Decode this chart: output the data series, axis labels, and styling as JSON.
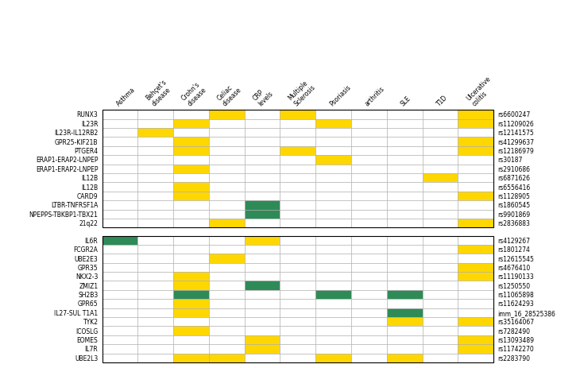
{
  "columns": [
    "Asthma",
    "Behçet's\ndisease",
    "Crohn's\ndisease",
    "Celiac\ndisease",
    "CRP\nlevels",
    "Multiple\nSclerosis",
    "Psoriasis",
    "arthritis",
    "SLE",
    "T1D",
    "Ulcerative\ncolitis"
  ],
  "group1_rows": [
    "RUNX3",
    "IL23R",
    "IL23R-IL12RB2",
    "GPR25-KIF21B",
    "PTGER4",
    "ERAP1-ERAP2-LNPEP",
    "ERAP1-ERAP2-LNPEP",
    "IL12B",
    "IL12B",
    "CARD9",
    "LTBR-TNFRSF1A",
    "NPEPPS-TBKBP1-TBX21",
    "21q22"
  ],
  "group1_snps": [
    "rs6600247",
    "rs11209026",
    "rs12141575",
    "rs41299637",
    "rs12186979",
    "rs30187",
    "rs2910686",
    "rs6871626",
    "rs6556416",
    "rs1128905",
    "rs1860545",
    "rs9901869",
    "rs2836883"
  ],
  "group2_rows": [
    "IL6R",
    "FCGR2A",
    "UBE2E3",
    "GPR35",
    "NKX2-3",
    "ZMIZ1",
    "SH2B3",
    "GPR65",
    "IL27-SUL T1A1",
    "TYK2",
    "ICOSLG",
    "EOMES",
    "IL7R",
    "UBE2L3"
  ],
  "group2_snps": [
    "rs4129267",
    "rs1801274",
    "rs12615545",
    "rs4676410",
    "rs11190133",
    "rs1250550",
    "rs11065898",
    "rs11624293",
    "imm_16_28525386",
    "rs35164067",
    "rs7282490",
    "rs13093489",
    "rs11742270",
    "rs2283790"
  ],
  "yellow": "#FFD700",
  "green": "#2E8B57",
  "grid_color": "#AAAAAA",
  "group1_data": [
    [
      0,
      0,
      0,
      1,
      0,
      1,
      0,
      0,
      0,
      0,
      1
    ],
    [
      0,
      0,
      1,
      0,
      0,
      0,
      1,
      0,
      0,
      0,
      1
    ],
    [
      0,
      1,
      0,
      0,
      0,
      0,
      0,
      0,
      0,
      0,
      0
    ],
    [
      0,
      0,
      1,
      0,
      0,
      0,
      0,
      0,
      0,
      0,
      1
    ],
    [
      0,
      0,
      1,
      0,
      0,
      1,
      0,
      0,
      0,
      0,
      1
    ],
    [
      0,
      0,
      0,
      0,
      0,
      0,
      1,
      0,
      0,
      0,
      0
    ],
    [
      0,
      0,
      1,
      0,
      0,
      0,
      0,
      0,
      0,
      0,
      0
    ],
    [
      0,
      0,
      0,
      0,
      0,
      0,
      0,
      0,
      0,
      1,
      0
    ],
    [
      0,
      0,
      1,
      0,
      0,
      0,
      0,
      0,
      0,
      0,
      0
    ],
    [
      0,
      0,
      1,
      0,
      0,
      0,
      0,
      0,
      0,
      0,
      1
    ],
    [
      0,
      0,
      0,
      0,
      2,
      0,
      0,
      0,
      0,
      0,
      0
    ],
    [
      0,
      0,
      0,
      0,
      2,
      0,
      0,
      0,
      0,
      0,
      0
    ],
    [
      0,
      0,
      0,
      1,
      0,
      0,
      0,
      0,
      0,
      0,
      1
    ]
  ],
  "group2_data": [
    [
      2,
      0,
      0,
      0,
      1,
      0,
      0,
      0,
      0,
      0,
      0
    ],
    [
      0,
      0,
      0,
      0,
      0,
      0,
      0,
      0,
      0,
      0,
      1
    ],
    [
      0,
      0,
      0,
      1,
      0,
      0,
      0,
      0,
      0,
      0,
      0
    ],
    [
      0,
      0,
      0,
      0,
      0,
      0,
      0,
      0,
      0,
      0,
      1
    ],
    [
      0,
      0,
      1,
      0,
      0,
      0,
      0,
      0,
      0,
      0,
      1
    ],
    [
      0,
      0,
      1,
      0,
      2,
      0,
      0,
      0,
      0,
      0,
      0
    ],
    [
      0,
      0,
      2,
      0,
      0,
      0,
      2,
      0,
      2,
      0,
      0
    ],
    [
      0,
      0,
      1,
      0,
      0,
      0,
      0,
      0,
      0,
      0,
      0
    ],
    [
      0,
      0,
      1,
      0,
      0,
      0,
      0,
      0,
      2,
      0,
      0
    ],
    [
      0,
      0,
      0,
      0,
      0,
      0,
      0,
      0,
      1,
      0,
      1
    ],
    [
      0,
      0,
      1,
      0,
      0,
      0,
      0,
      0,
      0,
      0,
      0
    ],
    [
      0,
      0,
      0,
      0,
      1,
      0,
      0,
      0,
      0,
      0,
      1
    ],
    [
      0,
      0,
      0,
      0,
      1,
      0,
      0,
      0,
      0,
      0,
      1
    ],
    [
      0,
      0,
      1,
      1,
      0,
      0,
      1,
      0,
      1,
      0,
      0
    ]
  ],
  "fig_width": 7.35,
  "fig_height": 4.64,
  "dpi": 100
}
